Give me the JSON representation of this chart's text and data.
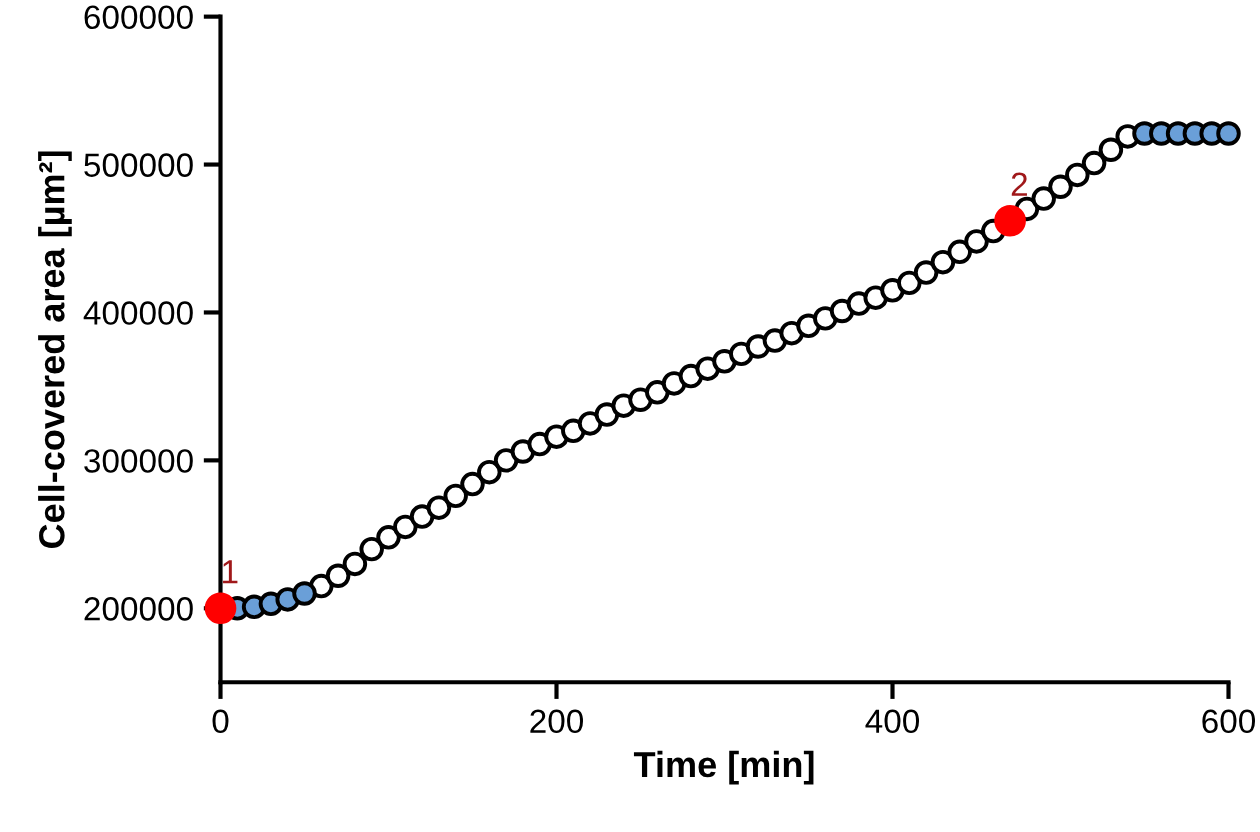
{
  "chart_data": {
    "type": "scatter",
    "xlabel": "Time [min]",
    "ylabel": "Cell-covered area [µm²]",
    "xlim": [
      0,
      600
    ],
    "ylim": [
      150000,
      600000
    ],
    "xticks": [
      0,
      200,
      400,
      600
    ],
    "yticks": [
      200000,
      300000,
      400000,
      500000,
      600000
    ],
    "grid": false,
    "legend": false,
    "marker": "circle",
    "series": [
      {
        "color": "#ffffff",
        "x": [
          60,
          70,
          80,
          90,
          100,
          110,
          120,
          130,
          140,
          150,
          160,
          170,
          180,
          190,
          200,
          210,
          220,
          230,
          240,
          250,
          260,
          270,
          280,
          290,
          300,
          310,
          320,
          330,
          340,
          350,
          360,
          370,
          380,
          390,
          400,
          410,
          420,
          430,
          440,
          450,
          460,
          480,
          490,
          500,
          510,
          520,
          530,
          540
        ],
        "values": [
          215000,
          222000,
          230000,
          240000,
          248000,
          255000,
          262000,
          268000,
          276000,
          284000,
          292000,
          300000,
          306000,
          311000,
          316000,
          320000,
          325000,
          331000,
          337000,
          341000,
          346000,
          352000,
          357000,
          362000,
          367000,
          372000,
          377000,
          381000,
          386000,
          391000,
          396000,
          401000,
          406000,
          410000,
          415000,
          420000,
          427000,
          434000,
          441000,
          448000,
          455000,
          470000,
          477000,
          485000,
          493000,
          501000,
          510000,
          519000
        ]
      },
      {
        "color": "#6a9fd8",
        "x": [
          10,
          20,
          30,
          40,
          50,
          550,
          560,
          570,
          580,
          590,
          600
        ],
        "values": [
          200000,
          201000,
          203000,
          206000,
          210000,
          521000,
          521000,
          521000,
          521000,
          521000,
          521000
        ]
      },
      {
        "color": "#ff0000",
        "x": [
          0,
          470
        ],
        "values": [
          200000,
          462000
        ]
      }
    ],
    "annotations": [
      {
        "text": "1",
        "x": 0,
        "y": 200000
      },
      {
        "text": "2",
        "x": 470,
        "y": 462000
      }
    ]
  }
}
